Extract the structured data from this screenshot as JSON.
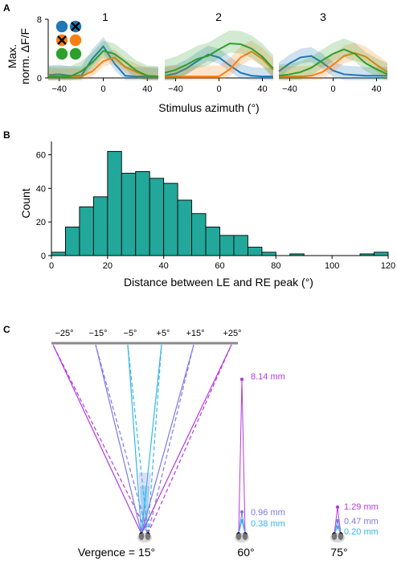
{
  "panel_a": {
    "letter": "A",
    "ylabel_line1": "Max.",
    "ylabel_line2": "norm. ΔF/F",
    "yticks": [
      "0",
      "8"
    ],
    "xticks": [
      "−40",
      "0",
      "40"
    ],
    "xlabel": "Stimulus azimuth (°)",
    "subpanels": [
      "1",
      "2",
      "3"
    ],
    "legend": {
      "rows": [
        [
          {
            "color": "#1f77b4",
            "cross": false
          },
          {
            "color": "#1f77b4",
            "cross": true
          }
        ],
        [
          {
            "color": "#ff7f0e",
            "cross": true
          },
          {
            "color": "#ff7f0e",
            "cross": false
          }
        ],
        [
          {
            "color": "#2ca02c",
            "cross": false
          },
          {
            "color": "#2ca02c",
            "cross": false
          }
        ]
      ]
    }
  },
  "panel_b": {
    "letter": "B",
    "ylabel": "Count",
    "xlabel": "Distance between LE and RE peak (°)",
    "yticks": [
      "0",
      "20",
      "40",
      "60"
    ],
    "xticks": [
      "0",
      "20",
      "40",
      "60",
      "80",
      "100",
      "120"
    ]
  },
  "panel_c": {
    "letter": "C",
    "top_labels": [
      "−25°",
      "−15°",
      "−5°",
      "+5°",
      "+15°",
      "+25°"
    ],
    "vergence_label": "Vergence = 15°",
    "vergence_60": "60°",
    "vergence_75": "75°",
    "distances_60": [
      "8.14 mm",
      "0.96 mm",
      "0.38 mm"
    ],
    "distances_75": [
      "1.29 mm",
      "0.47 mm",
      "0.20 mm"
    ]
  },
  "colors": {
    "blue": "#1f77b4",
    "orange": "#ff7f0e",
    "green": "#2ca02c",
    "teal": "#21a89a",
    "magenta": "#b43be0",
    "purple": "#7f79e0",
    "cyan": "#36b5ea"
  },
  "chart_data": [
    {
      "type": "line",
      "panel": "A1",
      "x": [
        -50,
        -40,
        -30,
        -20,
        -10,
        0,
        10,
        20,
        30,
        40,
        50
      ],
      "ylim": [
        0,
        8
      ],
      "series": [
        {
          "color": "#1f77b4",
          "values": [
            0.4,
            0.5,
            0.3,
            0.3,
            2.6,
            4.3,
            2.0,
            0.3,
            0.2,
            0.2,
            0.2
          ],
          "band": 1.3
        },
        {
          "color": "#ff7f0e",
          "values": [
            0.3,
            0.2,
            0.2,
            0.2,
            0.9,
            2.3,
            2.8,
            1.5,
            0.8,
            0.3,
            0.2
          ],
          "band": 1.1
        },
        {
          "color": "#2ca02c",
          "values": [
            0.2,
            0.2,
            0.2,
            0.9,
            2.1,
            3.7,
            3.3,
            2.2,
            1.0,
            0.3,
            0.2
          ],
          "band": 1.4
        }
      ]
    },
    {
      "type": "line",
      "panel": "A2",
      "x": [
        -50,
        -40,
        -30,
        -20,
        -10,
        0,
        10,
        20,
        30,
        40,
        50
      ],
      "ylim": [
        0,
        8
      ],
      "series": [
        {
          "color": "#1f77b4",
          "values": [
            0.3,
            0.6,
            1.3,
            2.3,
            3.2,
            2.8,
            1.7,
            0.7,
            0.3,
            0.2,
            0.2
          ],
          "band": 1.2
        },
        {
          "color": "#ff7f0e",
          "values": [
            0.2,
            0.2,
            0.2,
            0.2,
            0.2,
            0.2,
            1.2,
            2.8,
            3.6,
            2.6,
            1.1
          ],
          "band": 1.5
        },
        {
          "color": "#2ca02c",
          "values": [
            0.7,
            1.1,
            1.8,
            2.6,
            3.0,
            3.9,
            4.7,
            4.6,
            4.0,
            2.9,
            1.3
          ],
          "band": 1.8
        }
      ]
    },
    {
      "type": "line",
      "panel": "A3",
      "x": [
        -50,
        -40,
        -30,
        -20,
        -10,
        0,
        10,
        20,
        30,
        40,
        50
      ],
      "ylim": [
        0,
        8
      ],
      "series": [
        {
          "color": "#1f77b4",
          "values": [
            0.9,
            2.0,
            2.8,
            3.0,
            2.1,
            1.0,
            0.5,
            0.4,
            0.3,
            0.3,
            0.3
          ],
          "band": 1.2
        },
        {
          "color": "#ff7f0e",
          "values": [
            0.2,
            0.2,
            0.2,
            0.3,
            0.8,
            1.8,
            3.0,
            3.4,
            2.9,
            1.8,
            0.8
          ],
          "band": 1.4
        },
        {
          "color": "#2ca02c",
          "values": [
            0.3,
            0.5,
            0.8,
            1.4,
            2.4,
            3.3,
            3.9,
            3.3,
            2.0,
            1.2,
            0.5
          ],
          "band": 1.5
        }
      ]
    },
    {
      "type": "bar",
      "panel": "B",
      "bin_width": 5,
      "bin_starts": [
        0,
        5,
        10,
        15,
        20,
        25,
        30,
        35,
        40,
        45,
        50,
        55,
        60,
        65,
        70,
        75,
        80,
        85,
        90,
        95,
        100,
        105,
        110,
        115
      ],
      "values": [
        2,
        17,
        29,
        35,
        62,
        49,
        50,
        46,
        43,
        33,
        25,
        17,
        12,
        12,
        5,
        2,
        0,
        1,
        0,
        0,
        0,
        0,
        1,
        2
      ],
      "xlim": [
        0,
        120
      ],
      "ylim": [
        0,
        66
      ],
      "color": "#21a89a"
    }
  ]
}
